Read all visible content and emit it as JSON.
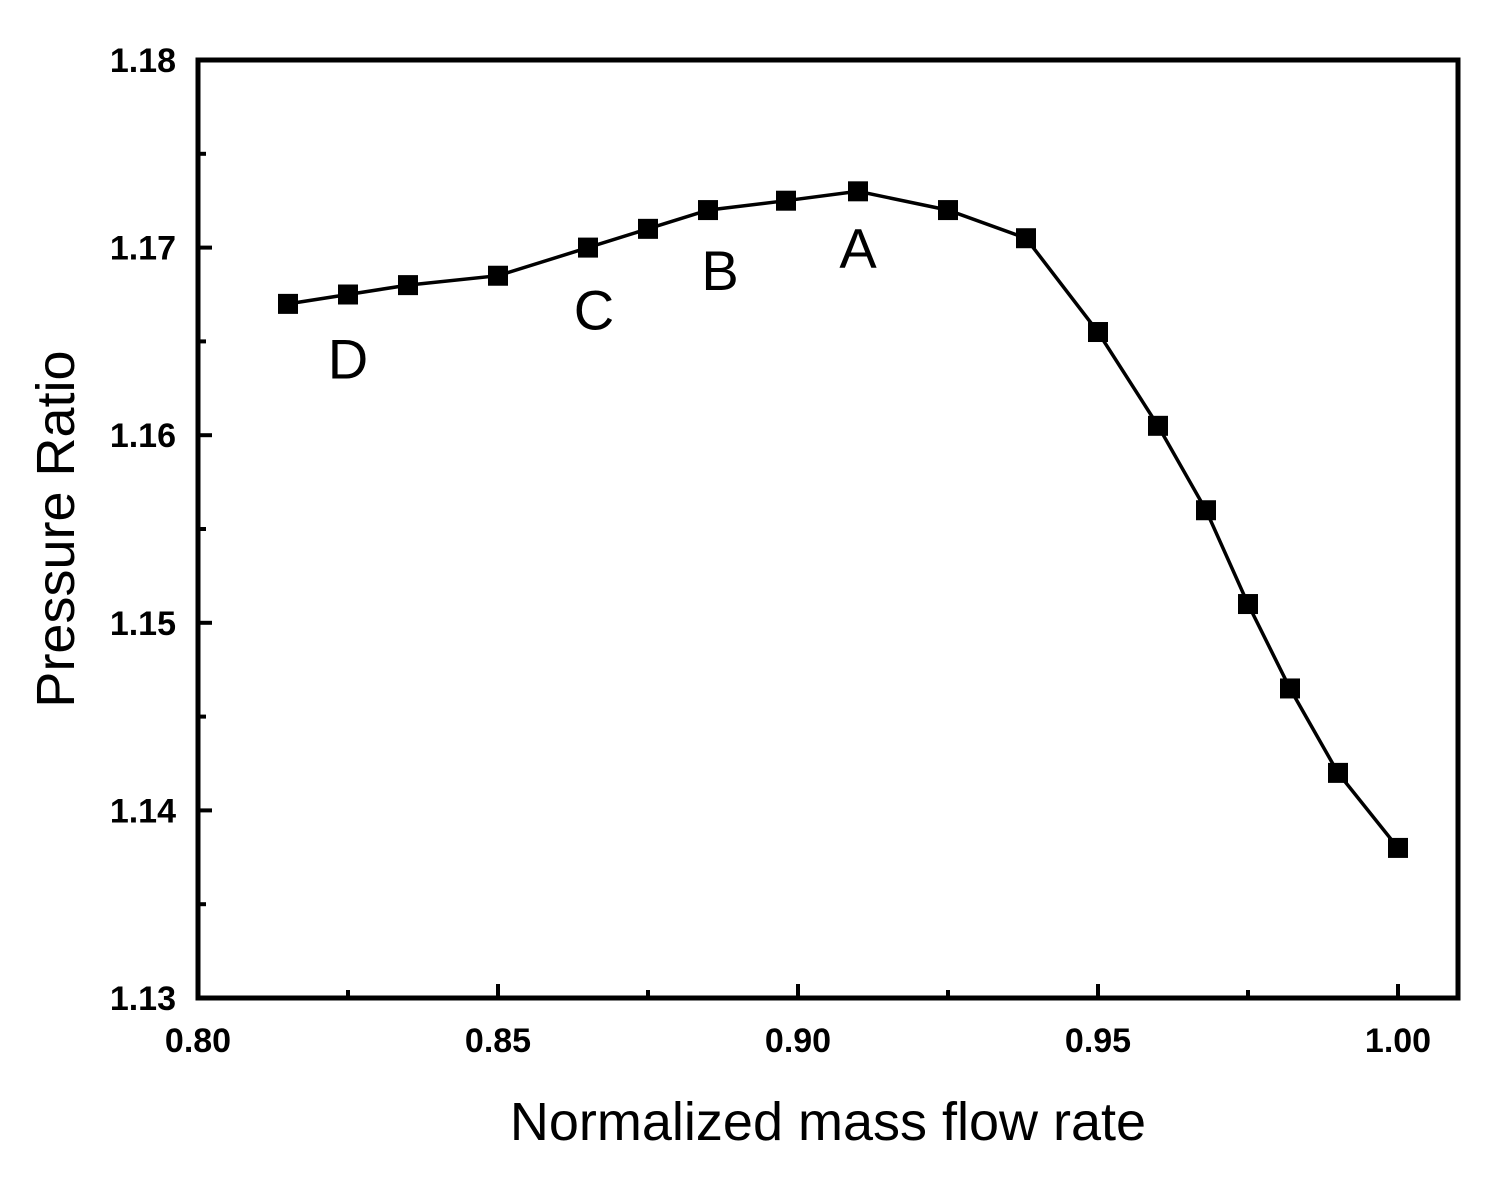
{
  "chart_data": {
    "type": "line",
    "title": "",
    "xlabel": "Normalized mass flow rate",
    "ylabel": "Pressure Ratio",
    "xlim": [
      0.8,
      1.01
    ],
    "ylim": [
      1.13,
      1.18
    ],
    "x_major_ticks": [
      0.8,
      0.85,
      0.9,
      0.95,
      1.0
    ],
    "x_tick_labels": [
      "0.80",
      "0.85",
      "0.90",
      "0.95",
      "1.00"
    ],
    "x_minor_ticks": [
      0.825,
      0.875,
      0.925,
      0.975
    ],
    "y_major_ticks": [
      1.13,
      1.14,
      1.15,
      1.16,
      1.17,
      1.18
    ],
    "y_tick_labels": [
      "1.13",
      "1.14",
      "1.15",
      "1.16",
      "1.17",
      "1.18"
    ],
    "y_minor_ticks": [
      1.135,
      1.145,
      1.155,
      1.165,
      1.175
    ],
    "grid": false,
    "legend": "none",
    "series": [
      {
        "name": "Pressure Ratio",
        "marker": "square",
        "color": "#000000",
        "x": [
          0.815,
          0.825,
          0.835,
          0.85,
          0.865,
          0.875,
          0.885,
          0.898,
          0.91,
          0.925,
          0.938,
          0.95,
          0.96,
          0.968,
          0.975,
          0.982,
          0.99,
          1.0
        ],
        "y": [
          1.167,
          1.1675,
          1.168,
          1.1685,
          1.17,
          1.171,
          1.172,
          1.1725,
          1.173,
          1.172,
          1.1705,
          1.1655,
          1.1605,
          1.156,
          1.151,
          1.1465,
          1.142,
          1.138
        ]
      }
    ],
    "annotations": [
      {
        "text": "A",
        "x": 0.91,
        "y": 1.17
      },
      {
        "text": "B",
        "x": 0.887,
        "y": 1.1688
      },
      {
        "text": "C",
        "x": 0.866,
        "y": 1.1667
      },
      {
        "text": "D",
        "x": 0.825,
        "y": 1.1641
      }
    ]
  }
}
